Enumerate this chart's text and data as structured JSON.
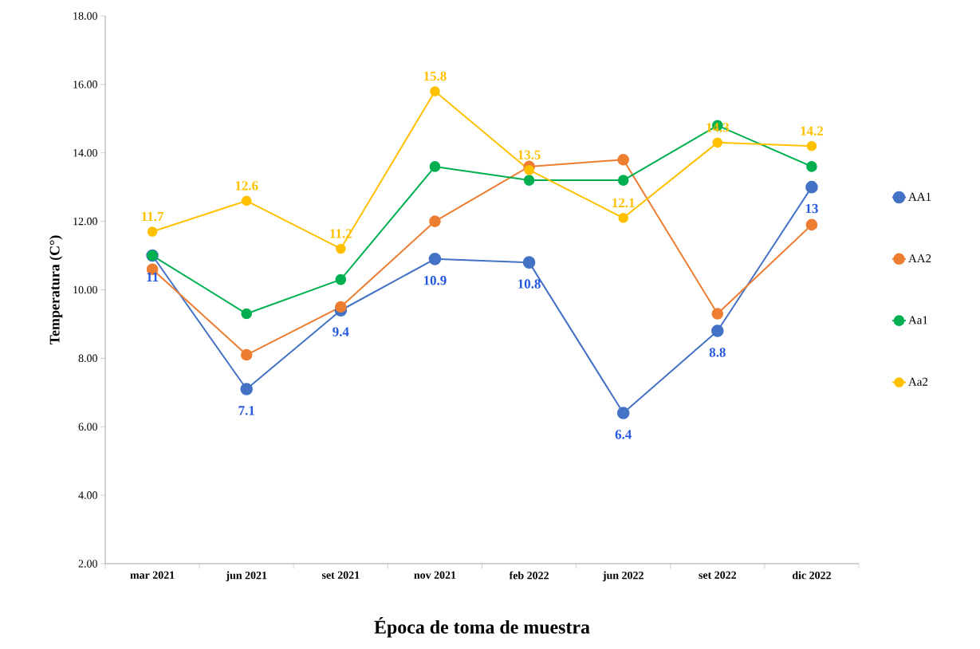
{
  "chart_data": {
    "type": "line",
    "xlabel": "Época de toma de muestra",
    "ylabel": "Temperatura (C°)",
    "categories": [
      "mar 2021",
      "jun 2021",
      "set 2021",
      "nov 2021",
      "feb 2022",
      "jun 2022",
      "set 2022",
      "dic 2022"
    ],
    "series": [
      {
        "name": "AA1",
        "color": "#4472c4",
        "values": [
          11,
          7.1,
          9.4,
          10.9,
          10.8,
          6.4,
          8.8,
          13
        ],
        "value_labels": [
          "11",
          "7.1",
          "9.4",
          "10.9",
          "10.8",
          "6.4",
          "8.8",
          "13"
        ]
      },
      {
        "name": "AA2",
        "color": "#ed7d31",
        "values": [
          10.6,
          8.1,
          9.5,
          12.0,
          13.6,
          13.8,
          9.3,
          11.9
        ]
      },
      {
        "name": "Aa1",
        "color": "#00b050",
        "values": [
          11,
          9.3,
          10.3,
          13.6,
          13.2,
          13.2,
          14.8,
          13.6
        ]
      },
      {
        "name": "Aa2",
        "color": "#ffc000",
        "values": [
          11.7,
          12.6,
          11.2,
          15.8,
          13.5,
          12.1,
          14.3,
          14.2
        ],
        "value_labels": [
          "11.7",
          "12.6",
          "11.2",
          "15.8",
          "13.5",
          "12.1",
          "14.3",
          "14.2"
        ]
      }
    ],
    "ylim": [
      2,
      18
    ],
    "yticks": [
      {
        "value": 2,
        "label": "2.00"
      },
      {
        "value": 4,
        "label": "4.00"
      },
      {
        "value": 6,
        "label": "6.00"
      },
      {
        "value": 8,
        "label": "8.00"
      },
      {
        "value": 10,
        "label": "10.00"
      },
      {
        "value": 12,
        "label": "12.00"
      },
      {
        "value": 14,
        "label": "14.00"
      },
      {
        "value": 16,
        "label": "16.00"
      },
      {
        "value": 18,
        "label": "18.00"
      }
    ],
    "grid": false,
    "legend": "right",
    "marker": "circle",
    "line_style": "solid"
  }
}
